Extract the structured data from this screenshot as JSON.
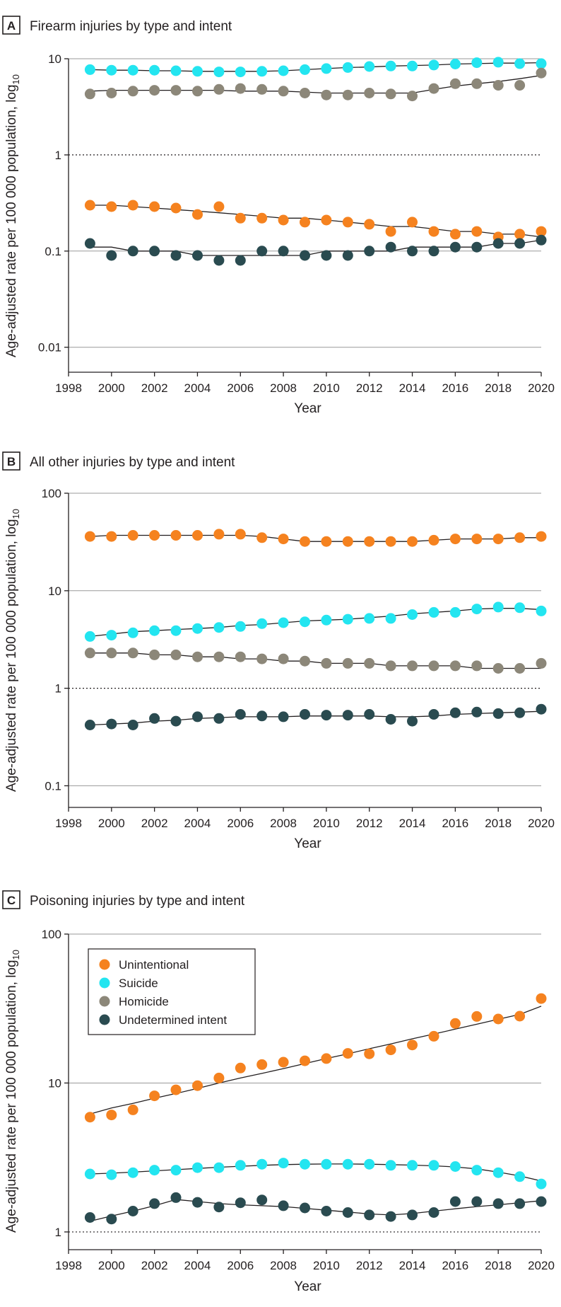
{
  "colors": {
    "unintentional": "#f5821f",
    "suicide": "#23e5f0",
    "homicide": "#8c8779",
    "undetermined": "#2a4b50",
    "trend": "#231f20"
  },
  "legend": {
    "entries": [
      "Unintentional",
      "Suicide",
      "Homicide",
      "Undetermined intent"
    ]
  },
  "chart_data": [
    {
      "type": "scatter",
      "panel_letter": "A",
      "title": "Firearm injuries by type and intent",
      "xlabel": "Year",
      "ylabel": "Age-adjusted rate per 100 000 population, log",
      "ylabel_sub": "10",
      "yscale": "log10",
      "xlim": [
        1998,
        2020
      ],
      "ylim": [
        0.0055,
        10
      ],
      "xticks": [
        1998,
        2000,
        2002,
        2004,
        2006,
        2008,
        2010,
        2012,
        2014,
        2016,
        2018,
        2020
      ],
      "xtick_labels": [
        "1998",
        "2000",
        "2002",
        "2004",
        "2006",
        "2008",
        "2010",
        "2012",
        "2014",
        "2016",
        "2018",
        "2020"
      ],
      "yticks": [
        0.01,
        0.1,
        1,
        10
      ],
      "ytick_labels": [
        "0.01",
        "0.1",
        "1",
        "10"
      ],
      "reference_line": 1,
      "series": [
        {
          "name": "Unintentional",
          "key": "unintentional",
          "x": [
            1999,
            2000,
            2001,
            2002,
            2003,
            2004,
            2005,
            2006,
            2007,
            2008,
            2009,
            2010,
            2011,
            2012,
            2013,
            2014,
            2015,
            2016,
            2017,
            2018,
            2019,
            2020
          ],
          "values": [
            0.3,
            0.29,
            0.3,
            0.29,
            0.28,
            0.24,
            0.29,
            0.22,
            0.22,
            0.21,
            0.2,
            0.21,
            0.2,
            0.19,
            0.16,
            0.2,
            0.16,
            0.15,
            0.16,
            0.14,
            0.15,
            0.16
          ],
          "trend": [
            0.3,
            0.3,
            0.29,
            0.28,
            0.27,
            0.26,
            0.25,
            0.24,
            0.23,
            0.22,
            0.22,
            0.21,
            0.2,
            0.19,
            0.18,
            0.18,
            0.17,
            0.16,
            0.16,
            0.15,
            0.15,
            0.14
          ]
        },
        {
          "name": "Suicide",
          "key": "suicide",
          "x": [
            1999,
            2000,
            2001,
            2002,
            2003,
            2004,
            2005,
            2006,
            2007,
            2008,
            2009,
            2010,
            2011,
            2012,
            2013,
            2014,
            2015,
            2016,
            2017,
            2018,
            2019,
            2020
          ],
          "values": [
            7.7,
            7.6,
            7.6,
            7.6,
            7.5,
            7.4,
            7.3,
            7.3,
            7.4,
            7.5,
            7.7,
            7.9,
            8.1,
            8.3,
            8.4,
            8.4,
            8.6,
            8.8,
            9.1,
            9.2,
            8.9,
            8.9
          ],
          "trend": [
            7.7,
            7.6,
            7.6,
            7.5,
            7.5,
            7.4,
            7.4,
            7.4,
            7.4,
            7.5,
            7.7,
            7.9,
            8.1,
            8.2,
            8.4,
            8.5,
            8.6,
            8.8,
            8.9,
            9.0,
            9.0,
            9.1
          ]
        },
        {
          "name": "Homicide",
          "key": "homicide",
          "x": [
            1999,
            2000,
            2001,
            2002,
            2003,
            2004,
            2005,
            2006,
            2007,
            2008,
            2009,
            2010,
            2011,
            2012,
            2013,
            2014,
            2015,
            2016,
            2017,
            2018,
            2019,
            2020
          ],
          "values": [
            4.3,
            4.4,
            4.6,
            4.7,
            4.7,
            4.6,
            4.8,
            4.9,
            4.8,
            4.6,
            4.4,
            4.2,
            4.2,
            4.4,
            4.3,
            4.1,
            4.9,
            5.5,
            5.5,
            5.3,
            5.3,
            7.1
          ],
          "trend": [
            4.6,
            4.7,
            4.7,
            4.7,
            4.7,
            4.7,
            4.7,
            4.6,
            4.6,
            4.6,
            4.5,
            4.4,
            4.4,
            4.4,
            4.4,
            4.4,
            4.8,
            5.2,
            5.5,
            5.8,
            6.2,
            6.7
          ]
        },
        {
          "name": "Undetermined intent",
          "key": "undetermined",
          "x": [
            1999,
            2000,
            2001,
            2002,
            2003,
            2004,
            2005,
            2006,
            2007,
            2008,
            2009,
            2010,
            2011,
            2012,
            2013,
            2014,
            2015,
            2016,
            2017,
            2018,
            2019,
            2020
          ],
          "values": [
            0.12,
            0.09,
            0.1,
            0.1,
            0.09,
            0.09,
            0.08,
            0.08,
            0.1,
            0.1,
            0.09,
            0.09,
            0.09,
            0.1,
            0.11,
            0.1,
            0.1,
            0.11,
            0.11,
            0.12,
            0.12,
            0.13
          ],
          "trend": [
            0.11,
            0.11,
            0.1,
            0.1,
            0.1,
            0.09,
            0.09,
            0.09,
            0.09,
            0.09,
            0.09,
            0.1,
            0.1,
            0.1,
            0.1,
            0.11,
            0.11,
            0.11,
            0.11,
            0.12,
            0.12,
            0.13
          ]
        }
      ]
    },
    {
      "type": "scatter",
      "panel_letter": "B",
      "title": "All other injuries by type and intent",
      "xlabel": "Year",
      "ylabel": "Age-adjusted rate per 100 000 population, log",
      "ylabel_sub": "10",
      "yscale": "log10",
      "xlim": [
        1998,
        2020
      ],
      "ylim": [
        0.06,
        100
      ],
      "xticks": [
        1998,
        2000,
        2002,
        2004,
        2006,
        2008,
        2010,
        2012,
        2014,
        2016,
        2018,
        2020
      ],
      "xtick_labels": [
        "1998",
        "2000",
        "2002",
        "2004",
        "2006",
        "2008",
        "2010",
        "2012",
        "2014",
        "2016",
        "2018",
        "2020"
      ],
      "yticks": [
        0.1,
        1,
        10,
        100
      ],
      "ytick_labels": [
        "0.1",
        "1",
        "10",
        "100"
      ],
      "reference_line": 1,
      "series": [
        {
          "name": "Unintentional",
          "key": "unintentional",
          "x": [
            1999,
            2000,
            2001,
            2002,
            2003,
            2004,
            2005,
            2006,
            2007,
            2008,
            2009,
            2010,
            2011,
            2012,
            2013,
            2014,
            2015,
            2016,
            2017,
            2018,
            2019,
            2020
          ],
          "values": [
            36,
            36,
            37,
            37,
            37,
            37,
            38,
            38,
            35,
            34,
            32,
            32,
            32,
            32,
            32,
            32,
            33,
            34,
            34,
            34,
            35,
            36
          ],
          "trend": [
            36,
            37,
            37,
            37,
            37,
            37,
            37,
            37,
            36,
            34,
            32,
            32,
            32,
            32,
            32,
            32,
            33,
            34,
            34,
            34,
            35,
            35
          ]
        },
        {
          "name": "Suicide",
          "key": "suicide",
          "x": [
            1999,
            2000,
            2001,
            2002,
            2003,
            2004,
            2005,
            2006,
            2007,
            2008,
            2009,
            2010,
            2011,
            2012,
            2013,
            2014,
            2015,
            2016,
            2017,
            2018,
            2019,
            2020
          ],
          "values": [
            3.4,
            3.5,
            3.7,
            3.9,
            3.9,
            4.1,
            4.2,
            4.3,
            4.6,
            4.7,
            4.8,
            5.0,
            5.1,
            5.2,
            5.2,
            5.7,
            6.0,
            6.0,
            6.5,
            6.8,
            6.7,
            6.2
          ],
          "trend": [
            3.4,
            3.6,
            3.8,
            3.9,
            4.0,
            4.1,
            4.2,
            4.4,
            4.5,
            4.7,
            4.9,
            5.0,
            5.1,
            5.3,
            5.5,
            5.8,
            6.0,
            6.2,
            6.5,
            6.6,
            6.6,
            6.4
          ]
        },
        {
          "name": "Homicide",
          "key": "homicide",
          "x": [
            1999,
            2000,
            2001,
            2002,
            2003,
            2004,
            2005,
            2006,
            2007,
            2008,
            2009,
            2010,
            2011,
            2012,
            2013,
            2014,
            2015,
            2016,
            2017,
            2018,
            2019,
            2020
          ],
          "values": [
            2.3,
            2.3,
            2.3,
            2.2,
            2.2,
            2.1,
            2.1,
            2.1,
            2.0,
            2.0,
            1.9,
            1.8,
            1.8,
            1.8,
            1.7,
            1.7,
            1.7,
            1.7,
            1.7,
            1.6,
            1.6,
            1.8
          ],
          "trend": [
            2.3,
            2.3,
            2.3,
            2.2,
            2.2,
            2.1,
            2.1,
            2.0,
            2.0,
            1.9,
            1.9,
            1.8,
            1.8,
            1.8,
            1.7,
            1.7,
            1.7,
            1.7,
            1.6,
            1.6,
            1.6,
            1.6
          ]
        },
        {
          "name": "Undetermined intent",
          "key": "undetermined",
          "x": [
            1999,
            2000,
            2001,
            2002,
            2003,
            2004,
            2005,
            2006,
            2007,
            2008,
            2009,
            2010,
            2011,
            2012,
            2013,
            2014,
            2015,
            2016,
            2017,
            2018,
            2019,
            2020
          ],
          "values": [
            0.42,
            0.43,
            0.42,
            0.49,
            0.46,
            0.51,
            0.49,
            0.54,
            0.52,
            0.51,
            0.54,
            0.53,
            0.53,
            0.54,
            0.48,
            0.46,
            0.54,
            0.56,
            0.57,
            0.55,
            0.56,
            0.61
          ],
          "trend": [
            0.42,
            0.43,
            0.44,
            0.46,
            0.47,
            0.49,
            0.5,
            0.51,
            0.51,
            0.51,
            0.52,
            0.52,
            0.52,
            0.52,
            0.51,
            0.51,
            0.52,
            0.54,
            0.55,
            0.56,
            0.57,
            0.58
          ]
        }
      ]
    },
    {
      "type": "scatter",
      "panel_letter": "C",
      "title": "Poisoning injuries by type and intent",
      "xlabel": "Year",
      "ylabel": "Age-adjusted rate per 100 000 population, log",
      "ylabel_sub": "10",
      "yscale": "log10",
      "xlim": [
        1998,
        2020
      ],
      "ylim": [
        0.76,
        100
      ],
      "xticks": [
        1998,
        2000,
        2002,
        2004,
        2006,
        2008,
        2010,
        2012,
        2014,
        2016,
        2018,
        2020
      ],
      "xtick_labels": [
        "1998",
        "2000",
        "2002",
        "2004",
        "2006",
        "2008",
        "2010",
        "2012",
        "2014",
        "2016",
        "2018",
        "2020"
      ],
      "yticks": [
        1,
        10,
        100
      ],
      "ytick_labels": [
        "1",
        "10",
        "100"
      ],
      "reference_line": 1,
      "legend": "top-left",
      "series": [
        {
          "name": "Unintentional",
          "key": "unintentional",
          "x": [
            1999,
            2000,
            2001,
            2002,
            2003,
            2004,
            2005,
            2006,
            2007,
            2008,
            2009,
            2010,
            2011,
            2012,
            2013,
            2014,
            2015,
            2016,
            2017,
            2018,
            2019,
            2020
          ],
          "values": [
            5.9,
            6.1,
            6.6,
            8.2,
            9.0,
            9.6,
            10.8,
            12.6,
            13.3,
            13.8,
            14.1,
            14.6,
            15.8,
            15.7,
            16.7,
            18.0,
            20.6,
            25.1,
            28.0,
            26.9,
            28.1,
            36.9
          ],
          "trend": [
            6.2,
            6.8,
            7.3,
            7.9,
            8.5,
            9.2,
            10.0,
            10.8,
            11.6,
            12.5,
            13.5,
            14.6,
            15.7,
            17.0,
            18.3,
            19.8,
            21.3,
            23.0,
            24.8,
            26.8,
            28.9,
            32.8
          ]
        },
        {
          "name": "Suicide",
          "key": "suicide",
          "x": [
            1999,
            2000,
            2001,
            2002,
            2003,
            2004,
            2005,
            2006,
            2007,
            2008,
            2009,
            2010,
            2011,
            2012,
            2013,
            2014,
            2015,
            2016,
            2017,
            2018,
            2019,
            2020
          ],
          "values": [
            2.45,
            2.42,
            2.5,
            2.6,
            2.6,
            2.7,
            2.7,
            2.8,
            2.85,
            2.9,
            2.85,
            2.85,
            2.85,
            2.85,
            2.8,
            2.8,
            2.8,
            2.75,
            2.6,
            2.5,
            2.35,
            2.1
          ],
          "trend": [
            2.45,
            2.48,
            2.52,
            2.57,
            2.62,
            2.67,
            2.72,
            2.76,
            2.8,
            2.83,
            2.85,
            2.86,
            2.86,
            2.85,
            2.83,
            2.81,
            2.78,
            2.73,
            2.65,
            2.52,
            2.38,
            2.2
          ]
        },
        {
          "name": "Undetermined intent",
          "key": "undetermined",
          "x": [
            1999,
            2000,
            2001,
            2002,
            2003,
            2004,
            2005,
            2006,
            2007,
            2008,
            2009,
            2010,
            2011,
            2012,
            2013,
            2014,
            2015,
            2016,
            2017,
            2018,
            2019,
            2020
          ],
          "values": [
            1.25,
            1.22,
            1.38,
            1.55,
            1.7,
            1.58,
            1.47,
            1.57,
            1.64,
            1.5,
            1.45,
            1.38,
            1.35,
            1.3,
            1.27,
            1.3,
            1.35,
            1.6,
            1.6,
            1.55,
            1.55,
            1.6
          ],
          "trend": [
            1.18,
            1.28,
            1.38,
            1.5,
            1.65,
            1.6,
            1.55,
            1.52,
            1.5,
            1.48,
            1.44,
            1.4,
            1.36,
            1.32,
            1.3,
            1.33,
            1.38,
            1.43,
            1.48,
            1.52,
            1.57,
            1.62
          ]
        }
      ]
    }
  ]
}
